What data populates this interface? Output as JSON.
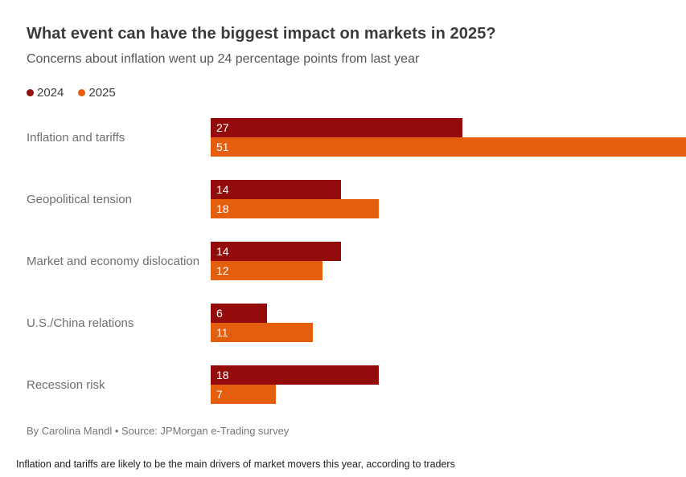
{
  "header": {
    "title": "What event can have the biggest impact on markets in 2025?",
    "subtitle": "Concerns about inflation went up 24 percentage points from last year"
  },
  "chart_data": {
    "type": "bar",
    "orientation": "horizontal",
    "title": "What event can have the biggest impact on markets in 2025?",
    "subtitle": "Concerns about inflation went up 24 percentage points from last year",
    "categories": [
      "Inflation and tariffs",
      "Geopolitical tension",
      "Market and economy dislocation",
      "U.S./China relations",
      "Recession risk"
    ],
    "series": [
      {
        "name": "2024",
        "color": "#930c0b",
        "values": [
          27,
          14,
          14,
          6,
          18
        ]
      },
      {
        "name": "2025",
        "color": "#e55e0d",
        "values": [
          51,
          18,
          12,
          11,
          7
        ]
      }
    ],
    "xlim": [
      0,
      51
    ],
    "value_labels": "inside-left",
    "legend_position": "top-left",
    "grid": false
  },
  "footer": {
    "byline": "By Carolina Mandl • Source: JPMorgan e-Trading survey",
    "caption": "Inflation and tariffs are likely to be the main drivers of market movers this year, according to traders"
  }
}
